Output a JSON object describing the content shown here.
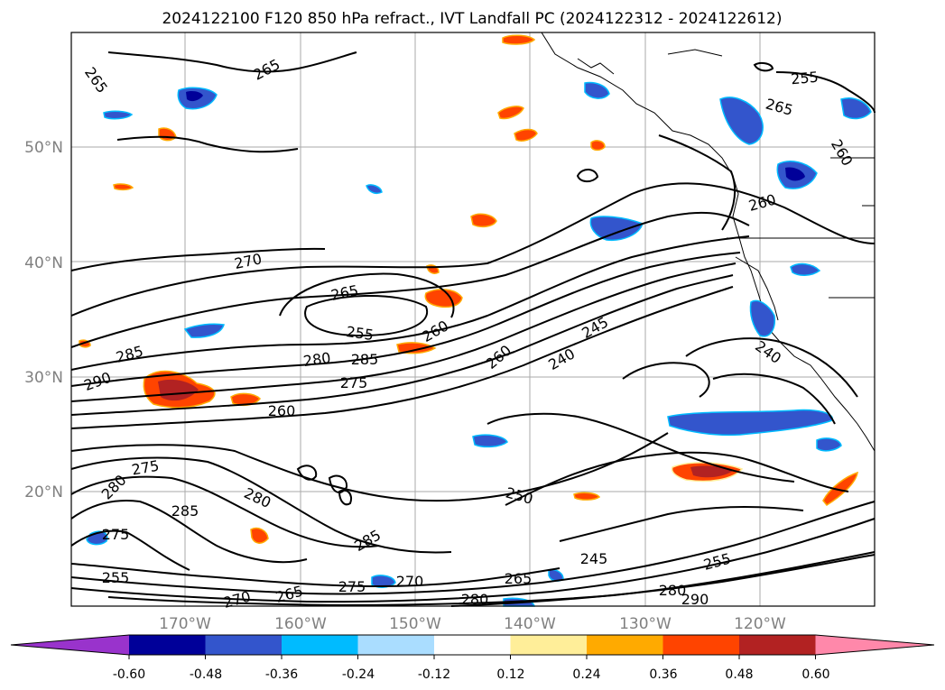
{
  "chart_data": {
    "type": "map-contour",
    "title": "2024122100 F120 850 hPa refract., IVT Landfall PC (2024122312 - 2024122612)",
    "lon_ticks": [
      "170°W",
      "160°W",
      "150°W",
      "140°W",
      "130°W",
      "120°W"
    ],
    "lat_ticks": [
      "50°N",
      "40°N",
      "30°N",
      "20°N"
    ],
    "grid": true,
    "colorbar": {
      "orientation": "horizontal",
      "extend": "both",
      "tick_labels": [
        "-0.60",
        "-0.48",
        "-0.36",
        "-0.24",
        "-0.12",
        "0.12",
        "0.24",
        "0.36",
        "0.48",
        "0.60"
      ],
      "colors": [
        "#9933cc",
        "#000099",
        "#3355cc",
        "#00bbff",
        "#aaddff",
        "#ffffff",
        "#ffee99",
        "#ffaa00",
        "#ff4400",
        "#b22222",
        "#ff88aa"
      ]
    },
    "contour_labels": [
      "265",
      "265",
      "270",
      "265",
      "255",
      "260",
      "280",
      "285",
      "275",
      "285",
      "290",
      "260",
      "260",
      "245",
      "240",
      "250",
      "275",
      "280",
      "285",
      "280",
      "285",
      "275",
      "255",
      "270",
      "265",
      "275",
      "265",
      "270",
      "280",
      "245",
      "255",
      "280",
      "290",
      "240",
      "255",
      "265",
      "260",
      "260"
    ]
  }
}
